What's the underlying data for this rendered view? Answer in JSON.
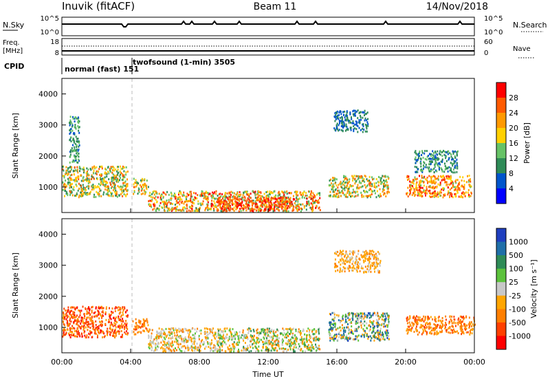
{
  "header": {
    "radar": "Inuvik (fitACF)",
    "beam": "Beam 11",
    "date": "14/Nov/2018"
  },
  "status": {
    "nsky_label": "N.Sky",
    "nsky_ticks": [
      "10^5",
      "10^0"
    ],
    "nsearch_label": "N.Search",
    "nsearch_ticks": [
      "10^5",
      "10^0"
    ],
    "freq_label": "Freq.",
    "freq_unit": "[MHz]",
    "freq_ticks": [
      "18",
      "8"
    ],
    "nave_label": "Nave",
    "nave_ticks": [
      "60",
      "0"
    ],
    "cpid_label": "CPID",
    "cpid_entries": [
      {
        "label": "normal (fast) 151",
        "start_hour": 0
      },
      {
        "label": "twofsound (1-min) 3505",
        "start_hour": 4.1
      }
    ]
  },
  "colors": {
    "power_scale": [
      "#0000ff",
      "#0055cc",
      "#2e8b57",
      "#66c266",
      "#ffd000",
      "#ff9900",
      "#ff5a00",
      "#ff0000"
    ],
    "velocity_scale": [
      "#1f3fbf",
      "#1f6fa8",
      "#2e8b57",
      "#5cc23c",
      "#c8c8c8",
      "#ffa500",
      "#ff7f00",
      "#ff4000",
      "#ff0000"
    ]
  },
  "chart_data": [
    {
      "type": "heatmap",
      "title": "Power",
      "xlabel": "",
      "ylabel": "Slant Range [km]",
      "x_ticks": [
        "00:00",
        "04:00",
        "08:00",
        "12:00",
        "16:00",
        "20:00",
        "00:00"
      ],
      "xlim_hours": [
        0,
        24
      ],
      "y_ticks": [
        "1000",
        "2000",
        "3000",
        "4000"
      ],
      "ylim_km": [
        180,
        4500
      ],
      "colorbar_label": "Power [dB]",
      "colorbar_ticks": [
        "4",
        "8",
        "12",
        "16",
        "20",
        "24",
        "28"
      ],
      "colorbar_range": [
        0,
        32
      ],
      "scatter_regions": [
        {
          "t": [
            0.0,
            3.8
          ],
          "r": [
            700,
            1700
          ],
          "value_db": [
            8,
            26
          ]
        },
        {
          "t": [
            0.4,
            1.0
          ],
          "r": [
            1800,
            3300
          ],
          "value_db": [
            6,
            16
          ]
        },
        {
          "t": [
            4.1,
            5.0
          ],
          "r": [
            800,
            1300
          ],
          "value_db": [
            10,
            26
          ]
        },
        {
          "t": [
            5.0,
            15.0
          ],
          "r": [
            250,
            900
          ],
          "value_db": [
            10,
            30
          ]
        },
        {
          "t": [
            9.0,
            13.5
          ],
          "r": [
            250,
            700
          ],
          "value_db": [
            22,
            30
          ]
        },
        {
          "t": [
            15.5,
            19.0
          ],
          "r": [
            700,
            1400
          ],
          "value_db": [
            10,
            26
          ]
        },
        {
          "t": [
            15.8,
            17.8
          ],
          "r": [
            2800,
            3500
          ],
          "value_db": [
            4,
            12
          ]
        },
        {
          "t": [
            20.0,
            23.8
          ],
          "r": [
            700,
            1400
          ],
          "value_db": [
            14,
            30
          ]
        },
        {
          "t": [
            20.5,
            23.0
          ],
          "r": [
            1500,
            2200
          ],
          "value_db": [
            6,
            14
          ]
        }
      ]
    },
    {
      "type": "heatmap",
      "title": "Velocity",
      "xlabel": "Time UT",
      "ylabel": "Slant Range [km]",
      "x_ticks": [
        "00:00",
        "04:00",
        "08:00",
        "12:00",
        "16:00",
        "20:00",
        "00:00"
      ],
      "xlim_hours": [
        0,
        24
      ],
      "y_ticks": [
        "1000",
        "2000",
        "3000",
        "4000"
      ],
      "ylim_km": [
        180,
        4500
      ],
      "colorbar_label": "Velocity [m s⁻¹]",
      "colorbar_ticks": [
        "1000",
        "500",
        "100",
        "25",
        "-25",
        "-100",
        "-500",
        "-1000"
      ],
      "scatter_regions": [
        {
          "t": [
            0.0,
            3.8
          ],
          "r": [
            700,
            1700
          ],
          "value_class": [
            5,
            8
          ]
        },
        {
          "t": [
            4.1,
            5.0
          ],
          "r": [
            800,
            1300
          ],
          "value_class": [
            5,
            7
          ]
        },
        {
          "t": [
            5.0,
            9.0
          ],
          "r": [
            250,
            1000
          ],
          "value_class": [
            3,
            6
          ]
        },
        {
          "t": [
            9.0,
            15.0
          ],
          "r": [
            250,
            1000
          ],
          "value_class": [
            2,
            6
          ]
        },
        {
          "t": [
            15.5,
            19.0
          ],
          "r": [
            600,
            1500
          ],
          "value_class": [
            0,
            6
          ]
        },
        {
          "t": [
            20.0,
            24.0
          ],
          "r": [
            800,
            1400
          ],
          "value_class": [
            5,
            7
          ]
        },
        {
          "t": [
            15.8,
            18.5
          ],
          "r": [
            2800,
            3500
          ],
          "value_class": [
            4,
            6
          ]
        }
      ]
    }
  ],
  "footer": {
    "xlabel": "Time UT"
  }
}
